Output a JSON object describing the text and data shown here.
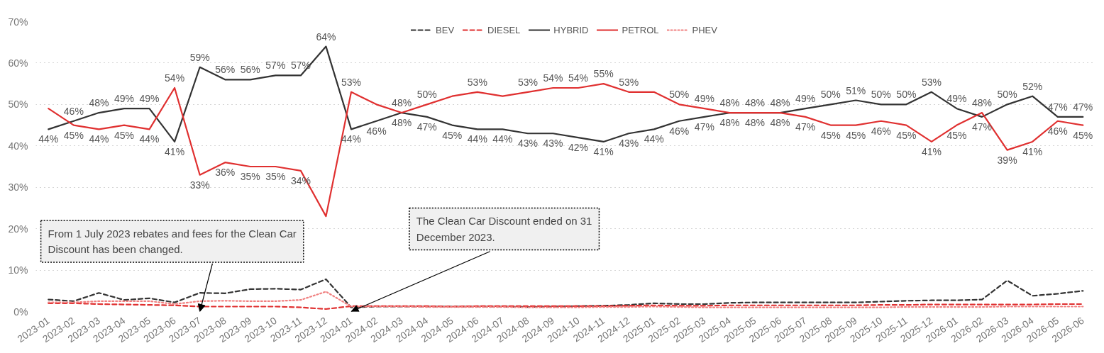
{
  "chart_data": {
    "type": "line",
    "categories": [
      "2023-01",
      "2023-02",
      "2023-03",
      "2023-04",
      "2023-05",
      "2023-06",
      "2023-07",
      "2023-08",
      "2023-09",
      "2023-10",
      "2023-11",
      "2023-12",
      "2024-01",
      "2024-02",
      "2024-03",
      "2024-04",
      "2024-05",
      "2024-06",
      "2024-07",
      "2024-08",
      "2024-09",
      "2024-10",
      "2024-11",
      "2024-12",
      "2025-01",
      "2025-02",
      "2025-03",
      "2025-04",
      "2025-05",
      "2025-06",
      "2025-07",
      "2025-08",
      "2025-09",
      "2025-10",
      "2025-11",
      "2025-12",
      "2026-01",
      "2026-02",
      "2026-03",
      "2026-04",
      "2026-05",
      "2026-06"
    ],
    "series": [
      {
        "name": "BEV",
        "color": "#333333",
        "line_style": "dashed",
        "values": [
          2.9,
          2.5,
          4.5,
          2.8,
          3.2,
          2.2,
          4.5,
          4.4,
          5.4,
          5.5,
          5.3,
          7.8,
          1.0,
          1.2,
          1.2,
          1.2,
          1.2,
          1.2,
          1.2,
          1.1,
          1.2,
          1.3,
          1.4,
          1.6,
          2.0,
          1.8,
          1.8,
          2.1,
          2.2,
          2.2,
          2.2,
          2.2,
          2.2,
          2.4,
          2.6,
          2.7,
          2.7,
          2.9,
          7.5,
          3.8,
          4.3,
          5.0
        ]
      },
      {
        "name": "DIESEL",
        "color": "#e03030",
        "line_style": "dashed",
        "values": [
          2.0,
          2.0,
          1.8,
          1.7,
          1.6,
          1.5,
          1.2,
          1.2,
          1.2,
          1.2,
          1.0,
          0.6,
          1.3,
          1.3,
          1.3,
          1.3,
          1.2,
          1.3,
          1.3,
          1.3,
          1.3,
          1.3,
          1.3,
          1.4,
          1.5,
          1.4,
          1.4,
          1.5,
          1.5,
          1.5,
          1.5,
          1.5,
          1.5,
          1.6,
          1.6,
          1.7,
          1.7,
          1.7,
          1.7,
          1.7,
          1.8,
          1.8
        ]
      },
      {
        "name": "HYBRID",
        "color": "#333333",
        "line_style": "solid",
        "values": [
          44,
          46,
          48,
          49,
          49,
          41,
          59,
          56,
          56,
          57,
          57,
          64,
          44,
          46,
          48,
          47,
          45,
          44,
          44,
          43,
          43,
          42,
          41,
          43,
          44,
          46,
          47,
          48,
          48,
          48,
          49,
          50,
          51,
          50,
          50,
          53,
          49,
          47,
          50,
          52,
          47,
          47
        ],
        "value_labels": [
          "44%",
          "46%",
          "48%",
          "49%",
          "49%",
          "41%",
          "59%",
          "56%",
          "56%",
          "57%",
          "57%",
          "64%",
          "44%",
          "46%",
          "48%",
          "47%",
          "45%",
          "44%",
          "44%",
          "43%",
          "43%",
          "42%",
          "41%",
          "43%",
          "44%",
          "46%",
          "47%",
          "48%",
          "48%",
          "48%",
          "49%",
          "50%",
          "51%",
          "50%",
          "50%",
          "53%",
          "49%",
          "47%",
          "50%",
          "52%",
          "47%",
          "47%"
        ]
      },
      {
        "name": "PETROL",
        "color": "#e03030",
        "line_style": "solid",
        "values": [
          49,
          45,
          44,
          45,
          44,
          54,
          33,
          36,
          35,
          35,
          34,
          23,
          53,
          50,
          48,
          50,
          52,
          53,
          52,
          53,
          54,
          54,
          55,
          53,
          53,
          50,
          49,
          48,
          48,
          48,
          47,
          45,
          45,
          46,
          45,
          41,
          45,
          48,
          39,
          41,
          46,
          45
        ],
        "value_labels": [
          null,
          "45%",
          "44%",
          "45%",
          "44%",
          "54%",
          "33%",
          "36%",
          "35%",
          "35%",
          "34%",
          null,
          "53%",
          null,
          "48%",
          "50%",
          null,
          "53%",
          null,
          "53%",
          "54%",
          "54%",
          "55%",
          "53%",
          null,
          "50%",
          "49%",
          "48%",
          "48%",
          "48%",
          "47%",
          "45%",
          "45%",
          "46%",
          "45%",
          "41%",
          "45%",
          "48%",
          "39%",
          "41%",
          "46%",
          "45%"
        ]
      },
      {
        "name": "PHEV",
        "color": "#f08080",
        "line_style": "dotted",
        "values": [
          2.2,
          2.2,
          2.5,
          2.5,
          2.5,
          1.8,
          2.5,
          2.6,
          2.5,
          2.5,
          2.8,
          4.8,
          1.2,
          1.2,
          1.2,
          1.1,
          1.1,
          1.1,
          1.1,
          1.0,
          1.0,
          1.0,
          1.1,
          1.1,
          1.2,
          1.1,
          1.0,
          1.0,
          1.0,
          1.0,
          1.0,
          1.0,
          1.0,
          1.0,
          1.1,
          1.1,
          1.1,
          1.1,
          1.2,
          1.2,
          1.2,
          1.2
        ]
      }
    ],
    "ylim": [
      0,
      70
    ],
    "yticks": [
      {
        "value": 0,
        "label": "0%"
      },
      {
        "value": 10,
        "label": "10%"
      },
      {
        "value": 20,
        "label": "20%"
      },
      {
        "value": 30,
        "label": "30%"
      },
      {
        "value": 40,
        "label": "40%"
      },
      {
        "value": 50,
        "label": "50%"
      },
      {
        "value": 60,
        "label": "60%"
      },
      {
        "value": 70,
        "label": "70%"
      }
    ],
    "grid": "y",
    "legend": "top",
    "annotations": [
      {
        "text": "From 1 July 2023 rebates and fees for the Clean Car Discount has been changed.",
        "x": "2023-07",
        "y": 0
      },
      {
        "text": "The Clean Car Discount ended on 31 December 2023.",
        "x": "2024-01",
        "y": 0
      }
    ]
  }
}
